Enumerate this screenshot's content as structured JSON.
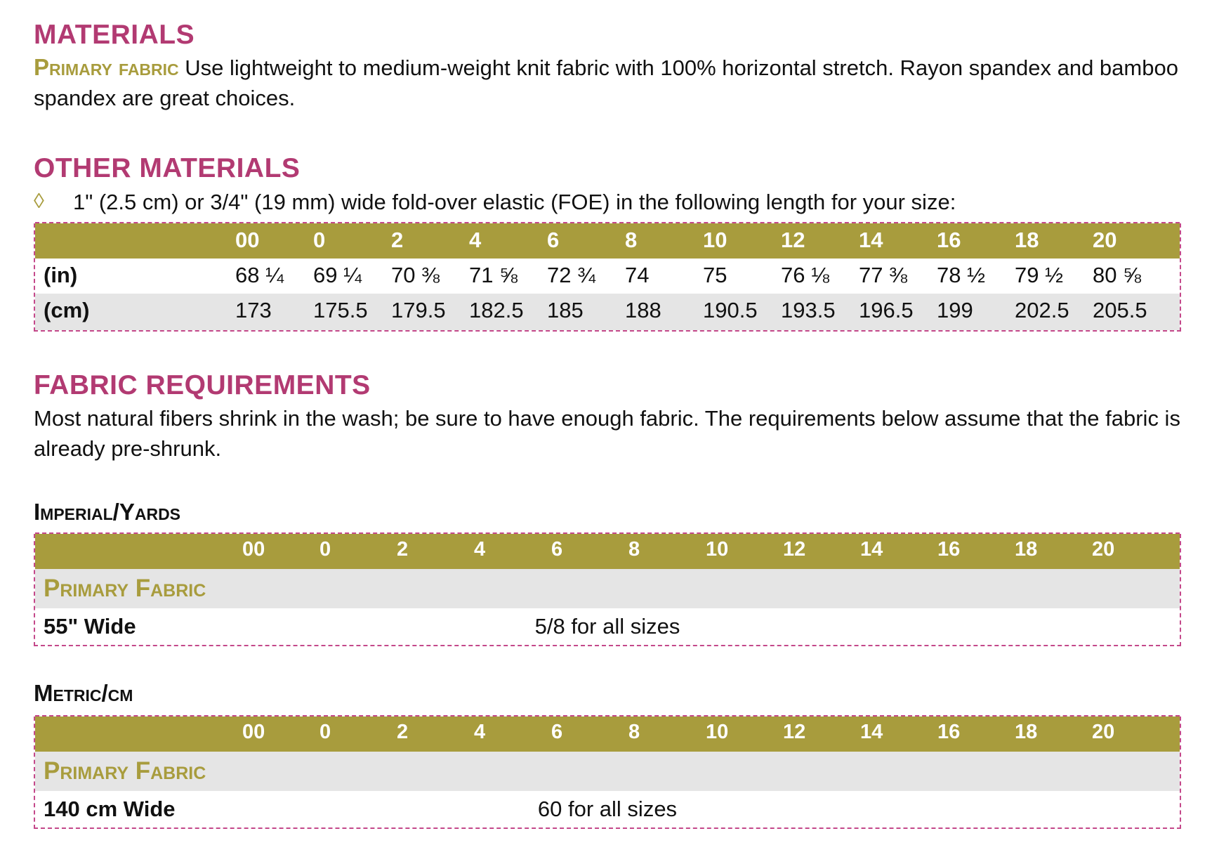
{
  "materials": {
    "heading": "MATERIALS",
    "primary_label": "Primary fabric",
    "primary_text": " Use lightweight to medium-weight knit fabric with 100% horizontal stretch. Rayon spandex and bamboo spandex are great choices."
  },
  "other_materials": {
    "heading": "OTHER MATERIALS",
    "bullet_icon": "diamond-outline-icon",
    "bullet_text": "1\" (2.5 cm) or 3/4\" (19 mm) wide fold-over elastic (FOE) in the following length for your size:",
    "table": {
      "sizes": [
        "00",
        "0",
        "2",
        "4",
        "6",
        "8",
        "10",
        "12",
        "14",
        "16",
        "18",
        "20"
      ],
      "rows": [
        {
          "label": "(in)",
          "values": [
            "68 ¼",
            "69 ¼",
            "70 ⅜",
            "71 ⅝",
            "72 ¾",
            "74",
            "75",
            "76 ⅛",
            "77 ⅜",
            "78 ½",
            "79 ½",
            "80 ⅝"
          ]
        },
        {
          "label": "(cm)",
          "values": [
            "173",
            "175.5",
            "179.5",
            "182.5",
            "185",
            "188",
            "190.5",
            "193.5",
            "196.5",
            "199",
            "202.5",
            "205.5"
          ]
        }
      ]
    }
  },
  "fabric_requirements": {
    "heading": "FABRIC REQUIREMENTS",
    "text": "Most natural fibers shrink in the wash; be sure to have enough fabric. The requirements below assume that the fabric is already pre-shrunk.",
    "imperial": {
      "heading": "Imperial/Yards",
      "sizes": [
        "00",
        "0",
        "2",
        "4",
        "6",
        "8",
        "10",
        "12",
        "14",
        "16",
        "18",
        "20"
      ],
      "section_label": "Primary Fabric",
      "row_label": "55\" Wide",
      "row_value": "5/8 for all sizes"
    },
    "metric": {
      "heading": "Metric/cm",
      "sizes": [
        "00",
        "0",
        "2",
        "4",
        "6",
        "8",
        "10",
        "12",
        "14",
        "16",
        "18",
        "20"
      ],
      "section_label": "Primary Fabric",
      "row_label": "140 cm Wide",
      "row_value": "60 for all sizes"
    }
  },
  "colors": {
    "heading": "#b23a72",
    "olive": "#a89c3d",
    "shade": "#e5e5e5",
    "dash": "#c4488a"
  }
}
